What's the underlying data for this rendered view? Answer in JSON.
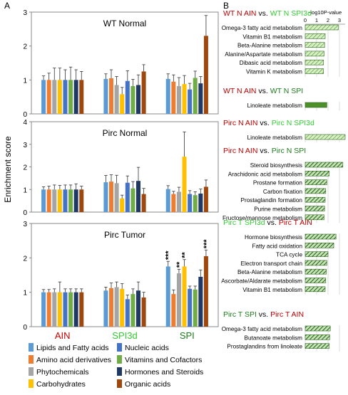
{
  "panel_labels": [
    "A",
    "B"
  ],
  "colors": {
    "lipids": "#5b9bd5",
    "amino": "#ed7d31",
    "phyto": "#a5a5a5",
    "carbs": "#ffc000",
    "nucleic": "#4472c4",
    "vitamins": "#70ad47",
    "hormones": "#1f3864",
    "organic": "#9e480e",
    "red": "#c00000",
    "green_light": "#33cc33",
    "green_dark": "#1e7b1e"
  },
  "chart_data": [
    {
      "type": "bar",
      "title": "WT Normal",
      "ylabel": "Enrichment score",
      "ylim": [
        0,
        3
      ],
      "yticks": [
        "0",
        "1",
        "2",
        "3"
      ],
      "categories": [
        "AIN",
        "SPI3d",
        "SPI"
      ],
      "series": [
        {
          "name": "Lipids and Fatty acids",
          "values": [
            1.0,
            1.03,
            1.03
          ],
          "errors": [
            0.12,
            0.15,
            0.15
          ]
        },
        {
          "name": "Amino acid derivatives",
          "values": [
            1.0,
            1.05,
            0.95
          ],
          "errors": [
            0.2,
            0.25,
            0.2
          ]
        },
        {
          "name": "Phytochemicals",
          "values": [
            1.0,
            0.85,
            0.82
          ],
          "errors": [
            0.35,
            0.25,
            0.25
          ]
        },
        {
          "name": "Carbohydrates",
          "values": [
            1.0,
            0.58,
            0.88
          ],
          "errors": [
            0.35,
            0.2,
            0.25
          ]
        },
        {
          "name": "Nucleic acids",
          "values": [
            1.0,
            0.97,
            0.72
          ],
          "errors": [
            0.3,
            0.3,
            0.18
          ]
        },
        {
          "name": "Vitamins and Cofactors",
          "values": [
            1.0,
            0.82,
            1.06
          ],
          "errors": [
            0.38,
            0.2,
            0.2
          ]
        },
        {
          "name": "Hormones and Steroids",
          "values": [
            1.0,
            0.85,
            0.9
          ],
          "errors": [
            0.3,
            0.3,
            0.2
          ]
        },
        {
          "name": "Organic acids",
          "values": [
            1.0,
            1.25,
            2.3
          ],
          "errors": [
            0.25,
            0.2,
            0.6
          ]
        }
      ],
      "significance": []
    },
    {
      "type": "bar",
      "title": "Pirc Normal",
      "ylabel": "Enrichment score",
      "ylim": [
        0,
        4
      ],
      "yticks": [
        "0",
        "1",
        "2",
        "3",
        "4"
      ],
      "categories": [
        "AIN",
        "SPI3d",
        "SPI"
      ],
      "series": [
        {
          "name": "Lipids and Fatty acids",
          "values": [
            1.0,
            1.32,
            1.02
          ],
          "errors": [
            0.12,
            0.3,
            0.15
          ]
        },
        {
          "name": "Amino acid derivatives",
          "values": [
            1.0,
            1.35,
            0.8
          ],
          "errors": [
            0.15,
            0.3,
            0.12
          ]
        },
        {
          "name": "Phytochemicals",
          "values": [
            1.0,
            1.28,
            0.9
          ],
          "errors": [
            0.2,
            0.35,
            0.2
          ]
        },
        {
          "name": "Carbohydrates",
          "values": [
            1.0,
            0.6,
            2.45
          ],
          "errors": [
            0.18,
            0.15,
            1.1
          ]
        },
        {
          "name": "Nucleic acids",
          "values": [
            1.0,
            1.3,
            0.8
          ],
          "errors": [
            0.2,
            0.3,
            0.15
          ]
        },
        {
          "name": "Vitamins and Cofactors",
          "values": [
            1.0,
            1.05,
            0.75
          ],
          "errors": [
            0.2,
            0.3,
            0.15
          ]
        },
        {
          "name": "Hormones and Steroids",
          "values": [
            1.0,
            1.38,
            0.82
          ],
          "errors": [
            0.25,
            0.6,
            0.2
          ]
        },
        {
          "name": "Organic acids",
          "values": [
            1.0,
            0.8,
            1.12
          ],
          "errors": [
            0.15,
            0.25,
            0.3
          ]
        }
      ],
      "significance": []
    },
    {
      "type": "bar",
      "title": "Pirc Tumor",
      "ylabel": "Enrichment score",
      "ylim": [
        0,
        3
      ],
      "yticks": [
        "0",
        "1",
        "2",
        "3"
      ],
      "categories": [
        "AIN",
        "SPI3d",
        "SPI"
      ],
      "series": [
        {
          "name": "Lipids and Fatty acids",
          "values": [
            1.0,
            1.05,
            1.75
          ],
          "errors": [
            0.08,
            0.1,
            0.15
          ]
        },
        {
          "name": "Amino acid derivatives",
          "values": [
            1.0,
            1.12,
            0.95
          ],
          "errors": [
            0.08,
            0.15,
            0.12
          ]
        },
        {
          "name": "Phytochemicals",
          "values": [
            1.0,
            1.15,
            1.55
          ],
          "errors": [
            0.1,
            0.15,
            0.12
          ]
        },
        {
          "name": "Carbohydrates",
          "values": [
            1.0,
            1.1,
            1.75
          ],
          "errors": [
            0.3,
            0.15,
            0.2
          ]
        },
        {
          "name": "Nucleic acids",
          "values": [
            1.0,
            0.8,
            1.1
          ],
          "errors": [
            0.1,
            0.12,
            0.08
          ]
        },
        {
          "name": "Vitamins and Cofactors",
          "values": [
            1.0,
            0.95,
            1.08
          ],
          "errors": [
            0.1,
            0.15,
            0.1
          ]
        },
        {
          "name": "Hormones and Steroids",
          "values": [
            1.0,
            1.05,
            1.45
          ],
          "errors": [
            0.1,
            0.25,
            0.2
          ]
        },
        {
          "name": "Organic acids",
          "values": [
            1.0,
            0.85,
            2.05
          ],
          "errors": [
            0.1,
            0.15,
            0.18
          ]
        }
      ],
      "significance": [
        {
          "category": "SPI",
          "series": "Lipids and Fatty acids",
          "label": "***"
        },
        {
          "category": "SPI",
          "series": "Phytochemicals",
          "label": "**"
        },
        {
          "category": "SPI",
          "series": "Carbohydrates",
          "label": "**"
        },
        {
          "category": "SPI",
          "series": "Organic acids",
          "label": "***"
        }
      ]
    },
    {
      "type": "bar",
      "orientation": "horizontal",
      "axis_label": "-log10P-value",
      "xlim": [
        0,
        3.5
      ],
      "xticks": [
        "0",
        "1",
        "2",
        "3"
      ],
      "groups": [
        {
          "title_parts": [
            {
              "text": "WT N AIN",
              "color": "red"
            },
            {
              "text": " vs. ",
              "color": "black"
            },
            {
              "text": "WT N SPI3d",
              "color": "green_light"
            }
          ],
          "pattern": "light",
          "items": [
            {
              "label": "Omega-3 fatty acid metabolism",
              "value": 2.9
            },
            {
              "label": "Vitamin B1 metabolism",
              "value": 1.75
            },
            {
              "label": "Beta-Alanine metabolism",
              "value": 1.7
            },
            {
              "label": "Alanine/Aspartate metabolism",
              "value": 1.65
            },
            {
              "label": "Dibasic acid metabolism",
              "value": 1.6
            },
            {
              "label": "Vitamin K metabolism",
              "value": 1.6
            }
          ]
        },
        {
          "title_parts": [
            {
              "text": "WT N AIN",
              "color": "red"
            },
            {
              "text": " vs. ",
              "color": "black"
            },
            {
              "text": "WT N SPI",
              "color": "green_dark"
            }
          ],
          "pattern": "solid",
          "items": [
            {
              "label": "Linoleate metabolism",
              "value": 1.9
            }
          ]
        },
        {
          "title_parts": [
            {
              "text": "Pirc N AIN",
              "color": "red"
            },
            {
              "text": " vs. ",
              "color": "black"
            },
            {
              "text": "Pirc N SPI3d",
              "color": "green_light"
            }
          ],
          "pattern": "light",
          "items": [
            {
              "label": "Linoleate metabolism",
              "value": 3.5
            }
          ]
        },
        {
          "title_parts": [
            {
              "text": "Pirc N AIN",
              "color": "red"
            },
            {
              "text": " vs. ",
              "color": "black"
            },
            {
              "text": "Pirc N SPI",
              "color": "green_dark"
            }
          ],
          "pattern": "dark",
          "items": [
            {
              "label": "Steroid biosynthesis",
              "value": 3.3
            },
            {
              "label": "Arachidonic acid metabolism",
              "value": 2.1
            },
            {
              "label": "Prostane formation",
              "value": 1.9
            },
            {
              "label": "Carbon fixation",
              "value": 1.8
            },
            {
              "label": "Prostaglandin formation",
              "value": 1.75
            },
            {
              "label": "Purine metabolism",
              "value": 1.7
            },
            {
              "label": "Fructose/mannose metabolism",
              "value": 1.65
            }
          ]
        },
        {
          "title_parts": [
            {
              "text": "Pirc T SPI3d",
              "color": "green_light"
            },
            {
              "text": " vs. ",
              "color": "black"
            },
            {
              "text": "Pirc T AIN",
              "color": "red"
            }
          ],
          "pattern": "dark",
          "items": [
            {
              "label": "Hormone biosynthesis",
              "value": 2.7
            },
            {
              "label": "Fatty acid oxidation",
              "value": 2.5
            },
            {
              "label": "TCA cycle",
              "value": 2.0
            },
            {
              "label": "Electron transport chain",
              "value": 1.9
            },
            {
              "label": "Beta-Alanine metabolism",
              "value": 1.85
            },
            {
              "label": "Ascorbate/Aldarate metabolism",
              "value": 1.8
            },
            {
              "label": "Vitamin B1 metabolism",
              "value": 1.75
            }
          ]
        },
        {
          "title_parts": [
            {
              "text": "Pirc T SPI",
              "color": "green_dark"
            },
            {
              "text": " vs. ",
              "color": "black"
            },
            {
              "text": "Pirc T AIN",
              "color": "red"
            }
          ],
          "pattern": "dark",
          "items": [
            {
              "label": "Omega-3 fatty acid metabolism",
              "value": 2.2
            },
            {
              "label": "Butanoate metabolism",
              "value": 2.15
            },
            {
              "label": "Prostaglandins from linoleate",
              "value": 2.1
            }
          ]
        }
      ]
    }
  ],
  "x_categories": [
    {
      "text": "AIN",
      "color": "red"
    },
    {
      "text": "SPI3d",
      "color": "green_light"
    },
    {
      "text": "SPI",
      "color": "green_dark"
    }
  ],
  "legend": [
    {
      "label": "Lipids and Fatty acids",
      "color_key": "lipids"
    },
    {
      "label": "Nucleic acids",
      "color_key": "nucleic"
    },
    {
      "label": "Amino acid derivatives",
      "color_key": "amino"
    },
    {
      "label": "Vitamins and Cofactors",
      "color_key": "vitamins"
    },
    {
      "label": "Phytochemicals",
      "color_key": "phyto"
    },
    {
      "label": "Hormones and Steroids",
      "color_key": "hormones"
    },
    {
      "label": "Carbohydrates",
      "color_key": "carbs"
    },
    {
      "label": "Organic acids",
      "color_key": "organic"
    }
  ]
}
